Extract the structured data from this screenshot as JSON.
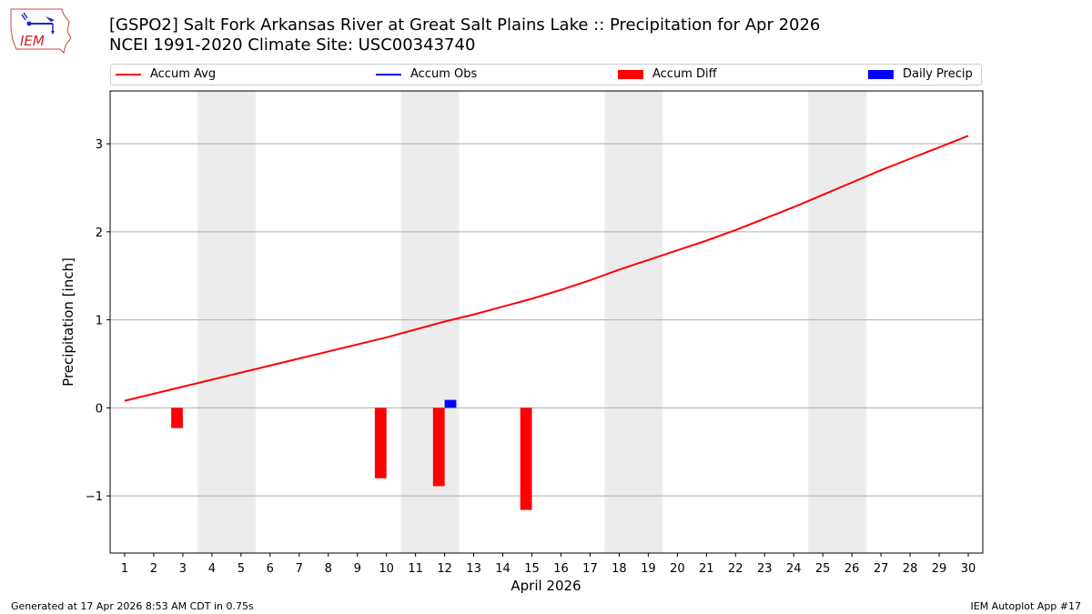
{
  "header": {
    "title_line1": "[GSPO2] Salt Fork Arkansas River at Great Salt Plains Lake :: Precipitation for Apr 2026",
    "title_line2": "NCEI 1991-2020 Climate Site: USC00343740",
    "logo_text": "IEM"
  },
  "legend": [
    {
      "label": "Accum Avg",
      "type": "line",
      "color": "#ff0000"
    },
    {
      "label": "Accum Obs",
      "type": "line",
      "color": "#0000ff"
    },
    {
      "label": "Accum Diff",
      "type": "patch",
      "color": "#ff0000"
    },
    {
      "label": "Daily Precip",
      "type": "patch",
      "color": "#0000ff"
    }
  ],
  "footer": {
    "left": "Generated at 17 Apr 2026 8:53 AM CDT in 0.75s",
    "right": "IEM Autoplot App #17"
  },
  "chart_data": {
    "type": "line",
    "title": "[GSPO2] Salt Fork Arkansas River at Great Salt Plains Lake :: Precipitation for Apr 2026",
    "subtitle": "NCEI 1991-2020 Climate Site: USC00343740",
    "xlabel": "April 2026",
    "ylabel": "Precipitation [inch]",
    "xlim": [
      0.5,
      30.5
    ],
    "ylim": [
      -1.65,
      3.6
    ],
    "yticks": [
      -1,
      0,
      1,
      2,
      3
    ],
    "ytick_labels": [
      "−1",
      "0",
      "1",
      "2",
      "3"
    ],
    "xticks": [
      1,
      2,
      3,
      4,
      5,
      6,
      7,
      8,
      9,
      10,
      11,
      12,
      13,
      14,
      15,
      16,
      17,
      18,
      19,
      20,
      21,
      22,
      23,
      24,
      25,
      26,
      27,
      28,
      29,
      30
    ],
    "grid": "y",
    "legend_position": "top",
    "weekend_shading": [
      [
        3.5,
        5.5
      ],
      [
        10.5,
        12.5
      ],
      [
        17.5,
        19.5
      ],
      [
        24.5,
        26.5
      ]
    ],
    "series": [
      {
        "name": "Accum Avg",
        "type": "line",
        "color": "#ff0000",
        "x": [
          1,
          2,
          3,
          4,
          5,
          6,
          7,
          8,
          9,
          10,
          11,
          12,
          13,
          14,
          15,
          16,
          17,
          18,
          19,
          20,
          21,
          22,
          23,
          24,
          25,
          26,
          27,
          28,
          29,
          30
        ],
        "values": [
          0.08,
          0.16,
          0.24,
          0.32,
          0.4,
          0.48,
          0.56,
          0.64,
          0.72,
          0.8,
          0.89,
          0.98,
          1.06,
          1.15,
          1.24,
          1.34,
          1.45,
          1.57,
          1.68,
          1.79,
          1.9,
          2.02,
          2.15,
          2.28,
          2.42,
          2.56,
          2.7,
          2.83,
          2.96,
          3.09
        ]
      },
      {
        "name": "Accum Obs",
        "type": "line",
        "color": "#0000ff",
        "x": [],
        "values": []
      },
      {
        "name": "Accum Diff",
        "type": "bar",
        "color": "#ff0000",
        "x": [
          3,
          10,
          12,
          15
        ],
        "values": [
          -0.23,
          -0.8,
          -0.89,
          -1.16
        ]
      },
      {
        "name": "Daily Precip",
        "type": "bar",
        "color": "#0000ff",
        "x": [
          12
        ],
        "values": [
          0.09
        ]
      }
    ]
  }
}
